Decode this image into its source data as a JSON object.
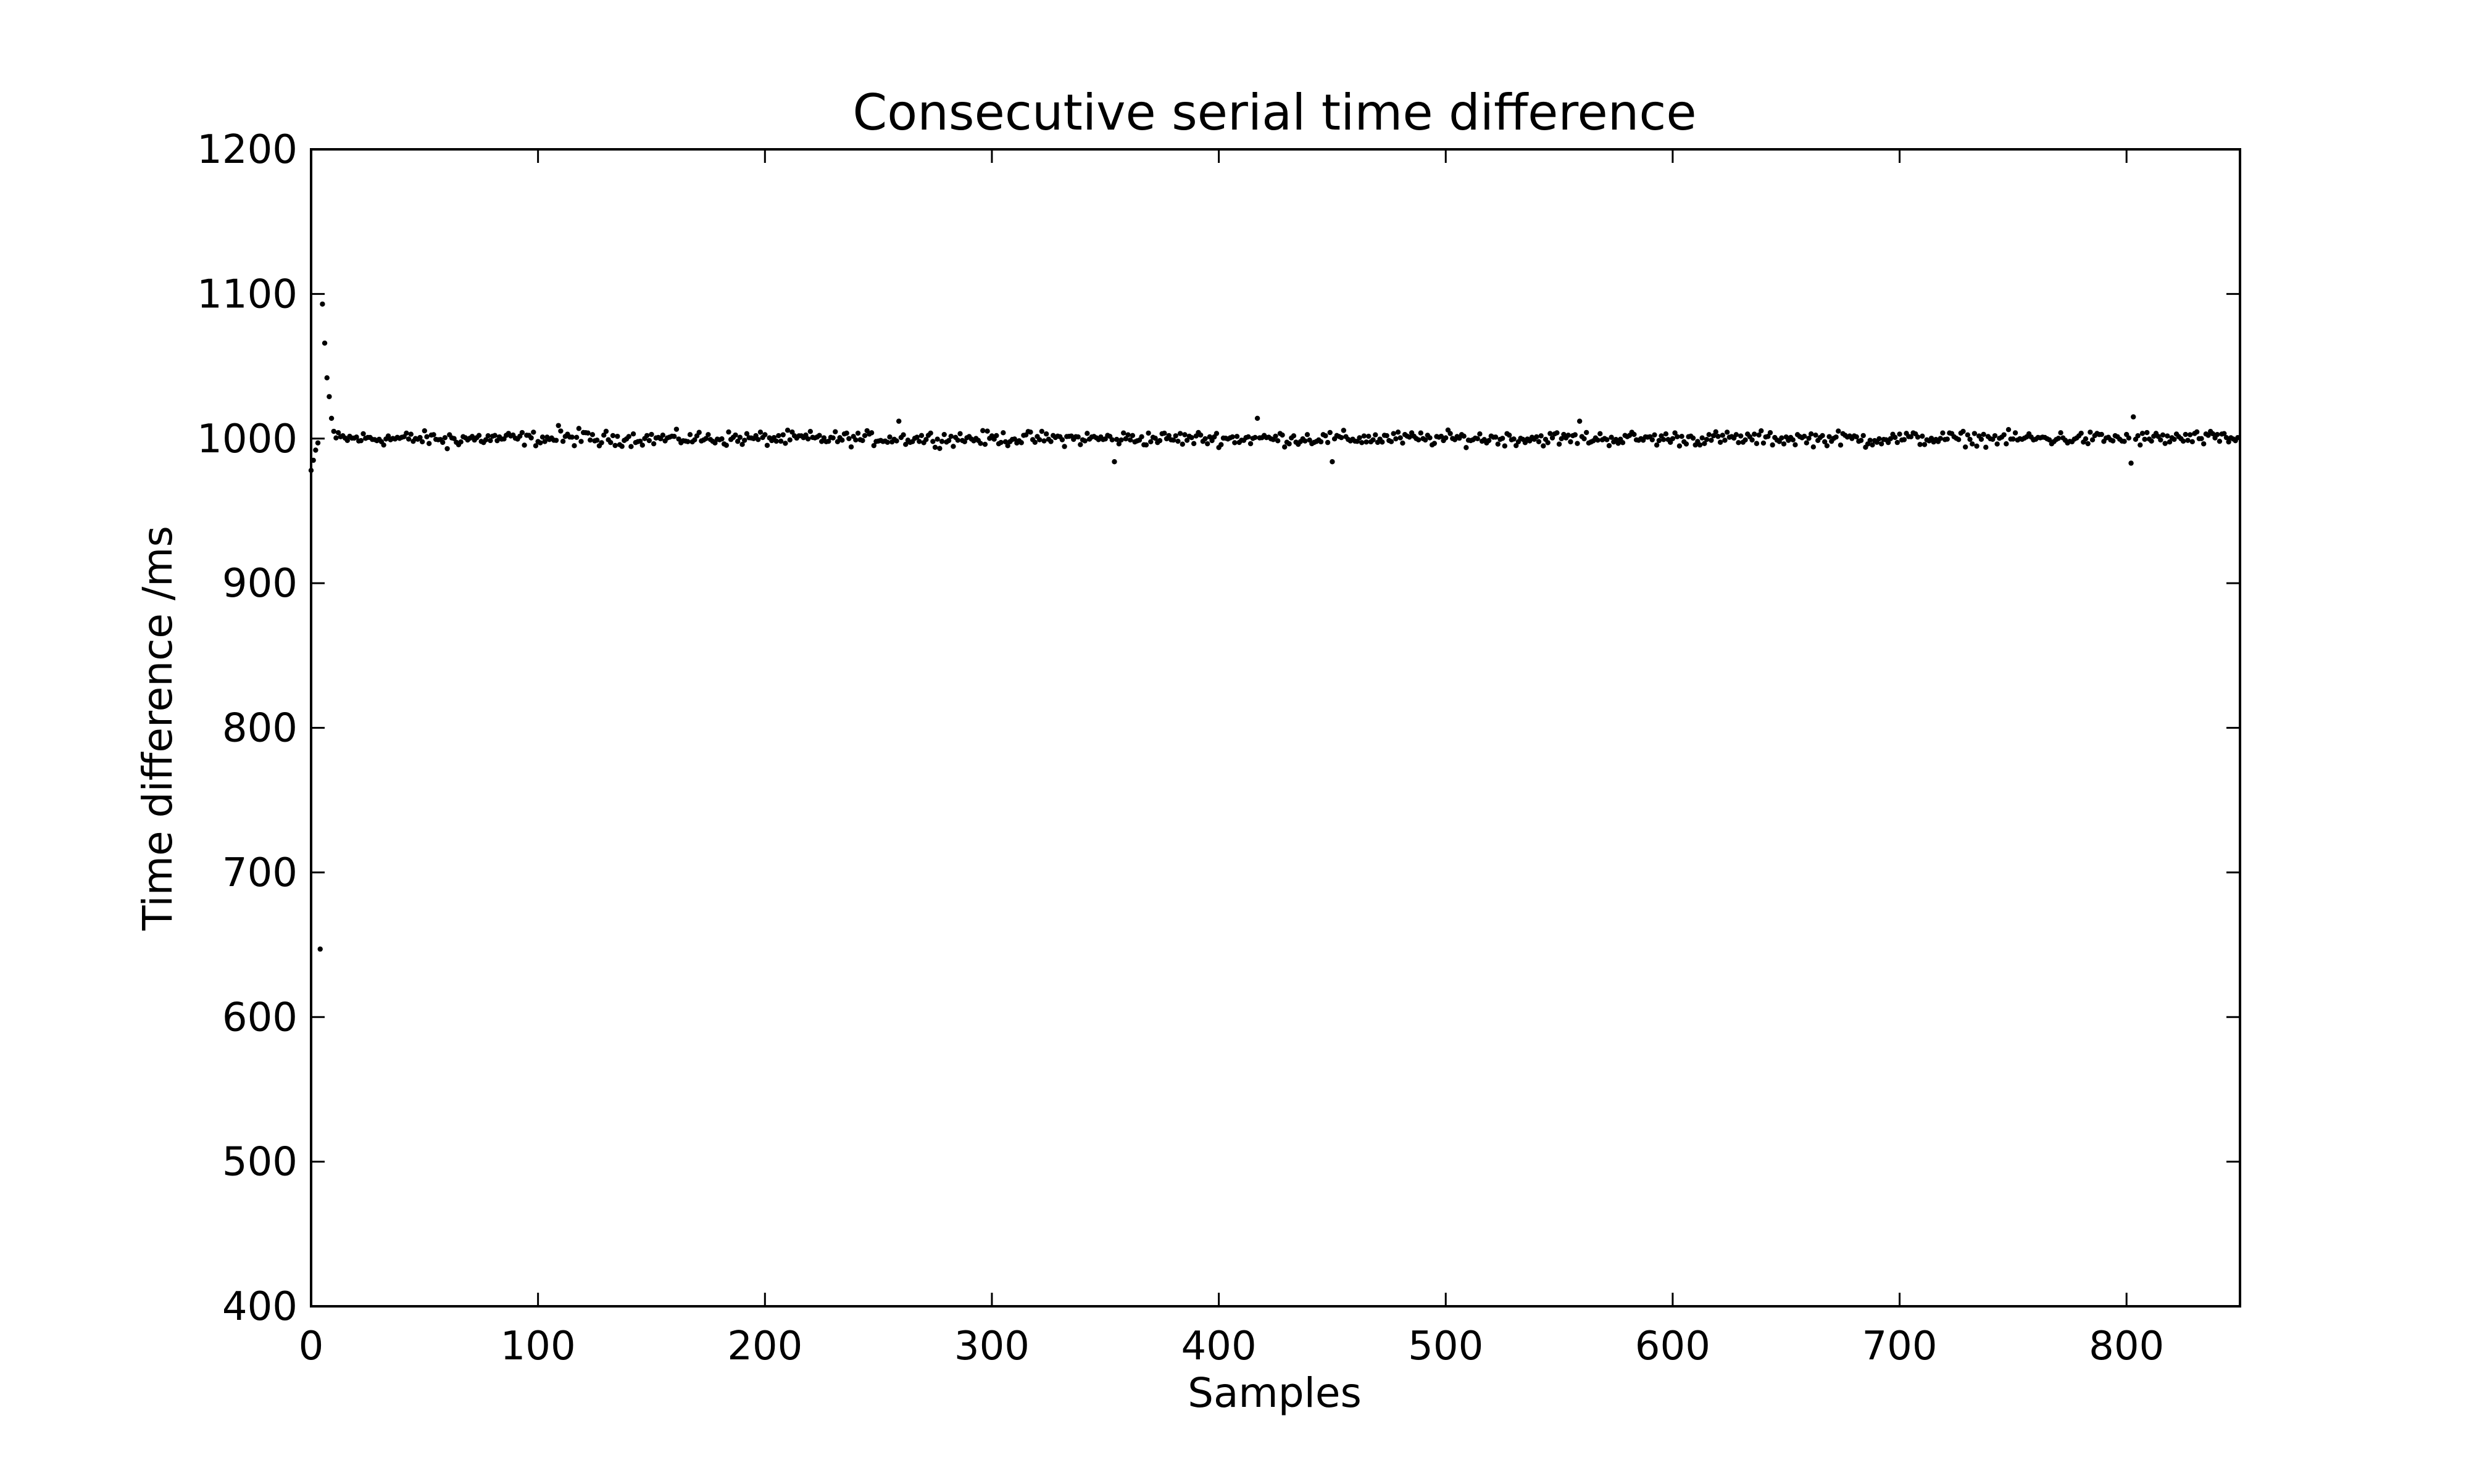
{
  "chart_data": {
    "type": "scatter",
    "title": "Consecutive serial time difference",
    "xlabel": "Samples",
    "ylabel": "Time difference /ms",
    "xlim": [
      0,
      850
    ],
    "ylim": [
      400,
      1200
    ],
    "xticks": [
      0,
      100,
      200,
      300,
      400,
      500,
      600,
      700,
      800
    ],
    "yticks": [
      400,
      500,
      600,
      700,
      800,
      900,
      1000,
      1100,
      1200
    ],
    "grid": false,
    "legend": "none",
    "marker_color": "#000000",
    "sample_count": 850,
    "baseline_value": 1000,
    "typical_jitter_ms": 3,
    "outliers": [
      {
        "x": 0,
        "y": 978
      },
      {
        "x": 1,
        "y": 985
      },
      {
        "x": 2,
        "y": 992
      },
      {
        "x": 3,
        "y": 997
      },
      {
        "x": 4,
        "y": 647
      },
      {
        "x": 5,
        "y": 1093
      },
      {
        "x": 6,
        "y": 1066
      },
      {
        "x": 7,
        "y": 1042
      },
      {
        "x": 8,
        "y": 1029
      },
      {
        "x": 9,
        "y": 1014
      },
      {
        "x": 10,
        "y": 1005
      },
      {
        "x": 60,
        "y": 993
      },
      {
        "x": 109,
        "y": 1009
      },
      {
        "x": 118,
        "y": 1007
      },
      {
        "x": 127,
        "y": 995
      },
      {
        "x": 259,
        "y": 1012
      },
      {
        "x": 354,
        "y": 984
      },
      {
        "x": 417,
        "y": 1014
      },
      {
        "x": 450,
        "y": 984
      },
      {
        "x": 559,
        "y": 1012
      },
      {
        "x": 685,
        "y": 994
      },
      {
        "x": 802,
        "y": 983
      },
      {
        "x": 803,
        "y": 1015
      }
    ]
  }
}
